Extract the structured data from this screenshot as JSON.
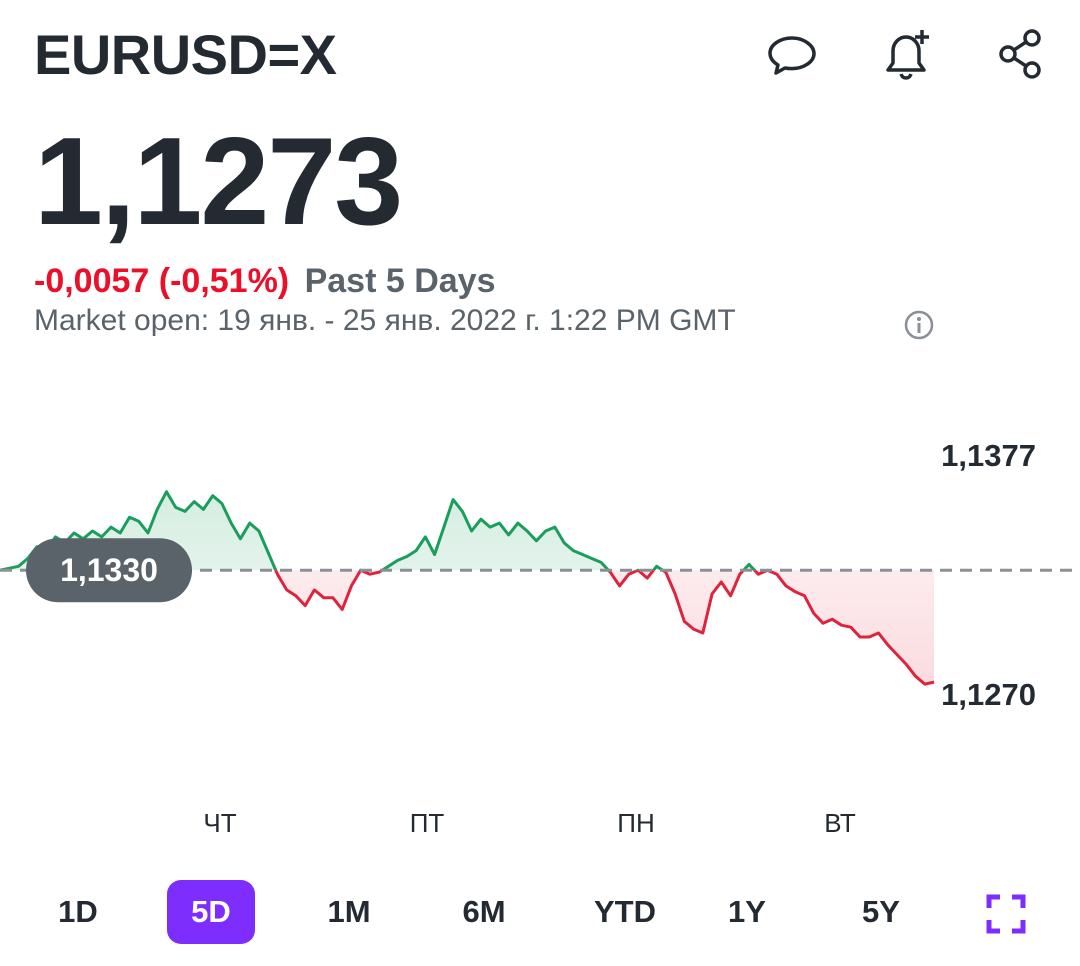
{
  "header": {
    "symbol": "EURUSD=X",
    "icons": [
      "comment-icon",
      "bell-plus-icon",
      "share-icon"
    ]
  },
  "quote": {
    "price": "1,1273",
    "change": "-0,0057 (-0,51%)",
    "period": "Past 5 Days",
    "market_status": "Market open: 19 янв. - 25 янв. 2022 г. 1:22 PM GMT"
  },
  "colors": {
    "up": "#1a9e5c",
    "down": "#e0233c",
    "accent": "#7d2eff",
    "text": "#232a31",
    "muted": "#5b636a"
  },
  "chart_data": {
    "type": "line",
    "baseline": 1.133,
    "baseline_label": "1,1330",
    "high_label": "1,1377",
    "low_label": "1,1270",
    "ylim": [
      1.127,
      1.1377
    ],
    "x_ticks": [
      "ЧТ",
      "ПТ",
      "ПН",
      "ВТ"
    ],
    "values": [
      1.133,
      1.1331,
      1.1332,
      1.1336,
      1.1342,
      1.134,
      1.1347,
      1.1344,
      1.1349,
      1.1346,
      1.135,
      1.1347,
      1.1352,
      1.1349,
      1.1357,
      1.1355,
      1.1349,
      1.1361,
      1.137,
      1.1362,
      1.136,
      1.1365,
      1.1361,
      1.1368,
      1.1364,
      1.1354,
      1.1346,
      1.1354,
      1.135,
      1.1339,
      1.1328,
      1.132,
      1.1317,
      1.1312,
      1.132,
      1.1316,
      1.1316,
      1.131,
      1.1322,
      1.133,
      1.1328,
      1.1329,
      1.1332,
      1.1335,
      1.1337,
      1.134,
      1.1347,
      1.1338,
      1.1352,
      1.1366,
      1.136,
      1.135,
      1.1356,
      1.1352,
      1.1354,
      1.1348,
      1.1354,
      1.135,
      1.1345,
      1.135,
      1.1352,
      1.1344,
      1.134,
      1.1338,
      1.1336,
      1.1334,
      1.1329,
      1.1322,
      1.1328,
      1.133,
      1.1326,
      1.1332,
      1.1329,
      1.1318,
      1.1304,
      1.13,
      1.1298,
      1.1318,
      1.1324,
      1.1317,
      1.1328,
      1.1333,
      1.1328,
      1.133,
      1.1328,
      1.1322,
      1.1319,
      1.1317,
      1.1308,
      1.1303,
      1.1305,
      1.1302,
      1.1301,
      1.1296,
      1.1296,
      1.1298,
      1.1292,
      1.1287,
      1.1282,
      1.1276,
      1.1272,
      1.1273
    ]
  },
  "ranges": {
    "items": [
      "1D",
      "5D",
      "1M",
      "6M",
      "YTD",
      "1Y",
      "5Y"
    ],
    "active": "5D"
  }
}
